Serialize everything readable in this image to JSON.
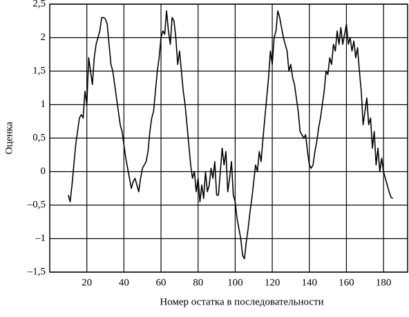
{
  "chart_data": {
    "type": "line",
    "xlabel": "Номер остатка в последовательности",
    "ylabel": "Оценка",
    "x": [
      10,
      11,
      12,
      13,
      14,
      15,
      16,
      17,
      18,
      19,
      20,
      21,
      22,
      23,
      24,
      25,
      26,
      27,
      28,
      29,
      30,
      31,
      32,
      33,
      34,
      35,
      36,
      37,
      38,
      39,
      40,
      41,
      42,
      43,
      44,
      45,
      46,
      47,
      48,
      49,
      50,
      51,
      52,
      53,
      54,
      55,
      56,
      57,
      58,
      59,
      60,
      61,
      62,
      63,
      64,
      65,
      66,
      67,
      68,
      69,
      70,
      71,
      72,
      73,
      74,
      75,
      76,
      77,
      78,
      79,
      80,
      81,
      82,
      83,
      84,
      85,
      86,
      87,
      88,
      89,
      90,
      91,
      92,
      93,
      94,
      95,
      96,
      97,
      98,
      99,
      100,
      101,
      102,
      103,
      104,
      105,
      106,
      107,
      108,
      109,
      110,
      111,
      112,
      113,
      114,
      115,
      116,
      117,
      118,
      119,
      120,
      121,
      122,
      123,
      124,
      125,
      126,
      127,
      128,
      129,
      130,
      131,
      132,
      133,
      134,
      135,
      136,
      137,
      138,
      139,
      140,
      141,
      142,
      143,
      144,
      145,
      146,
      147,
      148,
      149,
      150,
      151,
      152,
      153,
      154,
      155,
      156,
      157,
      158,
      159,
      160,
      161,
      162,
      163,
      164,
      165,
      166,
      167,
      168,
      169,
      170,
      171,
      172,
      173,
      174,
      175,
      176,
      177,
      178,
      179,
      180,
      181,
      182,
      183,
      184,
      185
    ],
    "values": [
      -0.35,
      -0.45,
      -0.2,
      0.1,
      0.4,
      0.6,
      0.8,
      0.85,
      0.8,
      1.2,
      1.0,
      1.7,
      1.5,
      1.3,
      1.7,
      1.9,
      2.0,
      2.1,
      2.3,
      2.3,
      2.28,
      2.2,
      1.9,
      1.6,
      1.5,
      1.3,
      1.1,
      0.9,
      0.7,
      0.6,
      0.4,
      0.2,
      0.05,
      -0.1,
      -0.25,
      -0.15,
      -0.1,
      -0.2,
      -0.3,
      -0.1,
      0.05,
      0.1,
      0.15,
      0.3,
      0.6,
      0.8,
      0.9,
      1.2,
      1.5,
      1.7,
      2.0,
      2.1,
      2.05,
      2.4,
      2.1,
      1.9,
      2.3,
      2.25,
      2.0,
      1.6,
      1.8,
      1.5,
      1.2,
      1.0,
      0.7,
      0.4,
      0.1,
      -0.1,
      0.0,
      -0.3,
      -0.1,
      -0.45,
      -0.2,
      -0.4,
      0.0,
      -0.3,
      -0.2,
      0.05,
      -0.1,
      0.15,
      -0.35,
      -0.35,
      0.0,
      0.35,
      0.1,
      0.3,
      -0.3,
      -0.1,
      0.15,
      -0.35,
      -0.45,
      -0.7,
      -0.85,
      -1.0,
      -1.25,
      -1.3,
      -1.05,
      -0.85,
      -0.6,
      -0.4,
      -0.15,
      0.1,
      0.0,
      0.3,
      0.15,
      0.5,
      0.8,
      1.1,
      1.4,
      1.8,
      1.6,
      2.0,
      2.1,
      2.4,
      2.3,
      2.15,
      2.0,
      1.9,
      1.8,
      1.5,
      1.6,
      1.4,
      1.3,
      1.1,
      0.9,
      0.6,
      0.55,
      0.5,
      0.55,
      0.3,
      0.1,
      0.05,
      0.1,
      0.3,
      0.45,
      0.65,
      0.8,
      1.0,
      1.2,
      1.5,
      1.45,
      1.7,
      1.6,
      1.9,
      1.8,
      2.1,
      1.9,
      2.15,
      1.9,
      2.05,
      2.2,
      1.9,
      2.0,
      1.8,
      1.95,
      1.7,
      1.85,
      1.5,
      1.2,
      0.7,
      0.9,
      1.1,
      0.7,
      0.8,
      0.35,
      0.6,
      0.1,
      0.35,
      0.0,
      0.2,
      0.0,
      -0.1,
      -0.2,
      -0.3,
      -0.38,
      -0.4
    ],
    "color": "#000000",
    "xlim": [
      0,
      193
    ],
    "ylim": [
      -1.5,
      2.5
    ],
    "xticks": [
      20,
      40,
      60,
      80,
      100,
      120,
      140,
      160,
      180
    ],
    "yticks": [
      {
        "value": -1.5,
        "label": "–1,5"
      },
      {
        "value": -1,
        "label": "–1"
      },
      {
        "value": -0.5,
        "label": "–0,5"
      },
      0,
      {
        "value": 0.5,
        "label": "0,5"
      },
      1,
      {
        "value": 1.5,
        "label": "1,5"
      },
      2,
      {
        "value": 2.5,
        "label": "2,5"
      }
    ],
    "grid": true
  }
}
